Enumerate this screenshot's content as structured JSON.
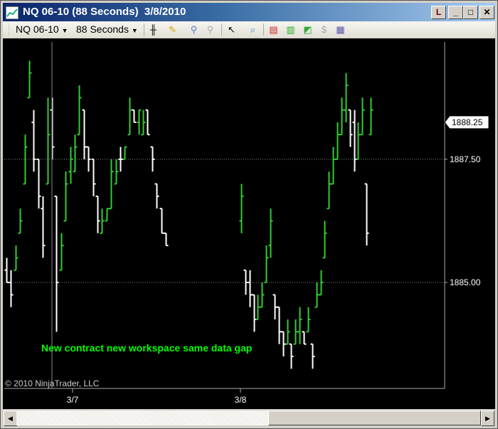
{
  "window": {
    "title": "NQ 06-10 (88 Seconds)  3/8/2010",
    "buttons": {
      "link": "L",
      "minimize": "_",
      "maximize": "□",
      "close": "✕"
    }
  },
  "toolbar": {
    "instrument": "NQ 06-10",
    "interval": "88 Seconds",
    "icons": [
      "bar-style-icon",
      "pencil-draw-icon",
      "zoom-in-icon",
      "zoom-out-icon",
      "pointer-icon",
      "magnifier-icon",
      "strategies-icon",
      "indicators-icon",
      "chart-properties-icon",
      "dollar-icon",
      "data-box-icon"
    ]
  },
  "chart": {
    "annotation": "New contract new workspace same data gap",
    "copyright": "© 2010 NinjaTrader, LLC",
    "current_price_label": "1888.25",
    "colors": {
      "background": "#000000",
      "up_bar": "#32cd32",
      "down_bar": "#ffffff",
      "annotation": "#00ff00"
    }
  },
  "chart_data": {
    "type": "ohlc",
    "y_ticks": [
      "1887.50",
      "1885.00"
    ],
    "y_tick_values": [
      1887.5,
      1885.0
    ],
    "x_ticks": [
      "3/7",
      "3/8"
    ],
    "ylim": [
      1882.85,
      1889.88
    ],
    "grid": "horizontal dotted",
    "current_price": 1888.25,
    "segments": [
      {
        "bars": [
          [
            1885.25,
            1885.5,
            1885.0,
            1885.0
          ],
          [
            1885.0,
            1885.25,
            1884.5,
            1884.75
          ],
          [
            1885.25,
            1885.75,
            1885.25,
            1885.5
          ],
          [
            1886.0,
            1886.5,
            1886.0,
            1886.25
          ],
          [
            1887.0,
            1888.0,
            1887.0,
            1887.75
          ],
          [
            1888.75,
            1889.5,
            1888.75,
            1889.25
          ],
          [
            1888.25,
            1888.5,
            1887.25,
            1887.5
          ],
          [
            1887.5,
            1887.5,
            1886.5,
            1886.75
          ],
          [
            1886.5,
            1886.75,
            1885.5,
            1885.75
          ],
          [
            1887.0,
            1888.75,
            1887.0,
            1888.0
          ],
          [
            1888.5,
            1888.75,
            1887.5,
            1887.75
          ],
          [
            1886.75,
            1886.75,
            1884.0,
            1885.0
          ],
          [
            1885.25,
            1886.0,
            1885.25,
            1885.75
          ],
          [
            1886.25,
            1887.25,
            1886.25,
            1887.0
          ],
          [
            1887.25,
            1887.75,
            1887.0,
            1887.5
          ],
          [
            1887.25,
            1888.0,
            1887.25,
            1887.75
          ],
          [
            1888.0,
            1889.0,
            1888.0,
            1888.75
          ],
          [
            1888.5,
            1888.5,
            1887.5,
            1887.75
          ],
          [
            1887.75,
            1887.75,
            1887.25,
            1887.5
          ],
          [
            1887.5,
            1887.5,
            1886.75,
            1887.0
          ],
          [
            1886.75,
            1886.75,
            1886.0,
            1886.25
          ],
          [
            1886.0,
            1886.5,
            1886.0,
            1886.25
          ],
          [
            1886.25,
            1886.5,
            1886.25,
            1886.5
          ],
          [
            1886.5,
            1887.5,
            1886.5,
            1887.25
          ],
          [
            1887.0,
            1887.5,
            1887.0,
            1887.25
          ],
          [
            1887.5,
            1887.75,
            1887.25,
            1887.5
          ],
          [
            1887.5,
            1887.75,
            1887.5,
            1887.75
          ],
          [
            1888.0,
            1888.75,
            1888.0,
            1888.5
          ],
          [
            1888.5,
            1888.5,
            1888.25,
            1888.25
          ],
          [
            1888.25,
            1888.5,
            1888.0,
            1888.5
          ],
          [
            1888.0,
            1888.5,
            1888.0,
            1888.25
          ],
          [
            1888.5,
            1888.5,
            1888.0,
            1888.0
          ],
          [
            1887.75,
            1887.75,
            1887.25,
            1887.5
          ],
          [
            1887.0,
            1887.0,
            1886.5,
            1886.75
          ],
          [
            1886.5,
            1886.5,
            1886.0,
            1886.0
          ],
          [
            1886.0,
            1886.0,
            1885.75,
            1885.75
          ]
        ]
      },
      {
        "bars": [
          [
            1886.25,
            1887.0,
            1886.0,
            1886.75
          ],
          [
            1885.25,
            1885.25,
            1884.75,
            1885.0
          ],
          [
            1885.0,
            1885.25,
            1884.5,
            1884.75
          ],
          [
            1884.75,
            1884.75,
            1884.0,
            1884.25
          ],
          [
            1884.25,
            1884.75,
            1884.25,
            1884.5
          ],
          [
            1884.5,
            1885.0,
            1884.5,
            1884.75
          ],
          [
            1885.0,
            1885.75,
            1885.0,
            1885.5
          ],
          [
            1885.75,
            1886.5,
            1885.5,
            1886.25
          ],
          [
            1884.75,
            1884.75,
            1884.25,
            1884.5
          ],
          [
            1884.5,
            1884.5,
            1883.75,
            1884.0
          ],
          [
            1884.0,
            1884.0,
            1883.5,
            1883.75
          ],
          [
            1883.75,
            1884.25,
            1883.75,
            1884.0
          ],
          [
            1883.75,
            1883.75,
            1883.25,
            1883.5
          ],
          [
            1883.75,
            1884.25,
            1883.75,
            1884.0
          ],
          [
            1884.0,
            1884.5,
            1883.75,
            1884.25
          ],
          [
            1884.0,
            1884.0,
            1883.75,
            1883.75
          ],
          [
            1884.0,
            1884.5,
            1884.0,
            1884.25
          ],
          [
            1883.75,
            1883.75,
            1883.25,
            1883.5
          ],
          [
            1884.5,
            1885.0,
            1884.5,
            1884.75
          ],
          [
            1884.75,
            1885.25,
            1884.75,
            1885.0
          ],
          [
            1885.5,
            1886.25,
            1885.5,
            1886.0
          ],
          [
            1886.5,
            1887.25,
            1886.5,
            1887.0
          ],
          [
            1887.0,
            1887.75,
            1887.0,
            1887.5
          ],
          [
            1887.5,
            1888.25,
            1887.5,
            1888.0
          ],
          [
            1888.0,
            1888.75,
            1888.0,
            1888.5
          ],
          [
            1888.5,
            1889.25,
            1888.25,
            1889.0
          ],
          [
            1888.5,
            1888.5,
            1887.75,
            1888.0
          ],
          [
            1888.25,
            1888.5,
            1887.25,
            1887.5
          ],
          [
            1887.5,
            1888.25,
            1887.5,
            1888.0
          ],
          [
            1888.0,
            1888.75,
            1888.0,
            1888.5
          ],
          [
            1887.0,
            1887.0,
            1885.75,
            1886.0
          ],
          [
            1888.0,
            1888.75,
            1888.0,
            1888.5
          ]
        ]
      }
    ]
  }
}
